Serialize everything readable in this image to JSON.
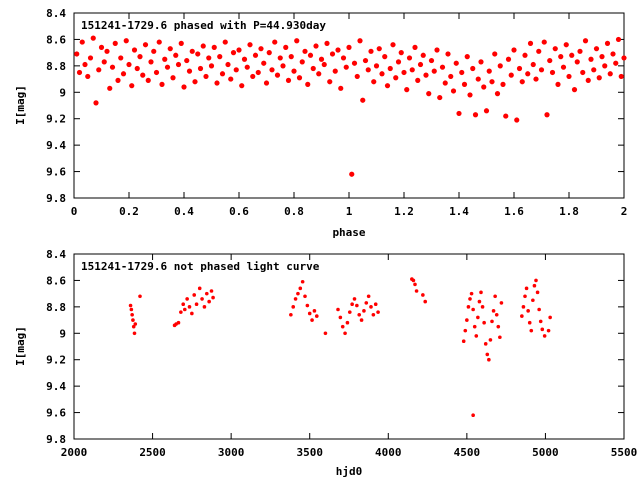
{
  "chart_data": [
    {
      "type": "scatter",
      "title": "151241-1729.6 phased with P=44.930day",
      "xlabel": "phase",
      "ylabel": "I[mag]",
      "xlim": [
        0,
        2
      ],
      "ylim": [
        8.4,
        9.8
      ],
      "y_inverted": true,
      "xticks": [
        "0",
        "0.2",
        "0.4",
        "0.6",
        "0.8",
        "1",
        "1.2",
        "1.4",
        "1.6",
        "1.8",
        "2"
      ],
      "yticks": [
        "8.4",
        "8.6",
        "8.8",
        "9",
        "9.2",
        "9.4",
        "9.6",
        "9.8"
      ],
      "marker_color": "#ff0000",
      "grid": false,
      "legend": "none",
      "points": [
        [
          0.01,
          8.71
        ],
        [
          0.02,
          8.85
        ],
        [
          0.03,
          8.62
        ],
        [
          0.04,
          8.79
        ],
        [
          0.05,
          8.88
        ],
        [
          0.06,
          8.74
        ],
        [
          0.07,
          8.59
        ],
        [
          0.08,
          9.08
        ],
        [
          0.09,
          8.83
        ],
        [
          0.1,
          8.66
        ],
        [
          0.11,
          8.77
        ],
        [
          0.12,
          8.69
        ],
        [
          0.13,
          8.97
        ],
        [
          0.14,
          8.81
        ],
        [
          0.15,
          8.63
        ],
        [
          0.16,
          8.91
        ],
        [
          0.17,
          8.74
        ],
        [
          0.18,
          8.86
        ],
        [
          0.19,
          8.61
        ],
        [
          0.2,
          8.79
        ],
        [
          0.21,
          8.95
        ],
        [
          0.22,
          8.68
        ],
        [
          0.23,
          8.82
        ],
        [
          0.24,
          8.73
        ],
        [
          0.25,
          8.87
        ],
        [
          0.26,
          8.64
        ],
        [
          0.27,
          8.91
        ],
        [
          0.28,
          8.77
        ],
        [
          0.29,
          8.69
        ],
        [
          0.3,
          8.85
        ],
        [
          0.31,
          8.62
        ],
        [
          0.32,
          8.94
        ],
        [
          0.33,
          8.75
        ],
        [
          0.34,
          8.81
        ],
        [
          0.35,
          8.67
        ],
        [
          0.36,
          8.89
        ],
        [
          0.37,
          8.72
        ],
        [
          0.38,
          8.79
        ],
        [
          0.39,
          8.63
        ],
        [
          0.4,
          8.96
        ],
        [
          0.41,
          8.76
        ],
        [
          0.42,
          8.84
        ],
        [
          0.43,
          8.69
        ],
        [
          0.44,
          8.92
        ],
        [
          0.45,
          8.71
        ],
        [
          0.46,
          8.82
        ],
        [
          0.47,
          8.65
        ],
        [
          0.48,
          8.88
        ],
        [
          0.49,
          8.74
        ],
        [
          0.5,
          8.8
        ],
        [
          0.51,
          8.66
        ],
        [
          0.52,
          8.93
        ],
        [
          0.53,
          8.73
        ],
        [
          0.54,
          8.86
        ],
        [
          0.55,
          8.62
        ],
        [
          0.56,
          8.79
        ],
        [
          0.57,
          8.9
        ],
        [
          0.58,
          8.7
        ],
        [
          0.59,
          8.83
        ],
        [
          0.6,
          8.68
        ],
        [
          0.61,
          8.95
        ],
        [
          0.62,
          8.75
        ],
        [
          0.63,
          8.81
        ],
        [
          0.64,
          8.64
        ],
        [
          0.65,
          8.88
        ],
        [
          0.66,
          8.72
        ],
        [
          0.67,
          8.85
        ],
        [
          0.68,
          8.67
        ],
        [
          0.69,
          8.78
        ],
        [
          0.7,
          8.93
        ],
        [
          0.71,
          8.7
        ],
        [
          0.72,
          8.83
        ],
        [
          0.73,
          8.62
        ],
        [
          0.74,
          8.87
        ],
        [
          0.75,
          8.74
        ],
        [
          0.76,
          8.8
        ],
        [
          0.77,
          8.66
        ],
        [
          0.78,
          8.91
        ],
        [
          0.79,
          8.73
        ],
        [
          0.8,
          8.84
        ],
        [
          0.81,
          8.61
        ],
        [
          0.82,
          8.89
        ],
        [
          0.83,
          8.77
        ],
        [
          0.84,
          8.69
        ],
        [
          0.85,
          8.94
        ],
        [
          0.86,
          8.72
        ],
        [
          0.87,
          8.82
        ],
        [
          0.88,
          8.65
        ],
        [
          0.89,
          8.86
        ],
        [
          0.9,
          8.75
        ],
        [
          0.91,
          8.79
        ],
        [
          0.92,
          8.63
        ],
        [
          0.93,
          8.92
        ],
        [
          0.94,
          8.71
        ],
        [
          0.95,
          8.84
        ],
        [
          0.96,
          8.68
        ],
        [
          0.97,
          8.97
        ],
        [
          0.98,
          8.74
        ],
        [
          0.99,
          8.81
        ],
        [
          1.0,
          8.66
        ],
        [
          1.01,
          9.62
        ],
        [
          1.02,
          8.78
        ],
        [
          1.03,
          8.88
        ],
        [
          1.04,
          8.61
        ],
        [
          1.05,
          9.06
        ],
        [
          1.06,
          8.76
        ],
        [
          1.07,
          8.83
        ],
        [
          1.08,
          8.69
        ],
        [
          1.09,
          8.92
        ],
        [
          1.1,
          8.8
        ],
        [
          1.11,
          8.67
        ],
        [
          1.12,
          8.86
        ],
        [
          1.13,
          8.73
        ],
        [
          1.14,
          8.95
        ],
        [
          1.15,
          8.82
        ],
        [
          1.16,
          8.64
        ],
        [
          1.17,
          8.89
        ],
        [
          1.18,
          8.77
        ],
        [
          1.19,
          8.7
        ],
        [
          1.2,
          8.85
        ],
        [
          1.21,
          8.98
        ],
        [
          1.22,
          8.74
        ],
        [
          1.23,
          8.83
        ],
        [
          1.24,
          8.66
        ],
        [
          1.25,
          8.91
        ],
        [
          1.26,
          8.79
        ],
        [
          1.27,
          8.72
        ],
        [
          1.28,
          8.87
        ],
        [
          1.29,
          9.01
        ],
        [
          1.3,
          8.76
        ],
        [
          1.31,
          8.84
        ],
        [
          1.32,
          8.68
        ],
        [
          1.33,
          9.04
        ],
        [
          1.34,
          8.81
        ],
        [
          1.35,
          8.93
        ],
        [
          1.36,
          8.71
        ],
        [
          1.37,
          8.88
        ],
        [
          1.38,
          8.99
        ],
        [
          1.39,
          8.78
        ],
        [
          1.4,
          9.16
        ],
        [
          1.41,
          8.85
        ],
        [
          1.42,
          8.94
        ],
        [
          1.43,
          8.73
        ],
        [
          1.44,
          9.02
        ],
        [
          1.45,
          8.82
        ],
        [
          1.46,
          9.17
        ],
        [
          1.47,
          8.9
        ],
        [
          1.48,
          8.77
        ],
        [
          1.49,
          8.96
        ],
        [
          1.5,
          9.14
        ],
        [
          1.51,
          8.84
        ],
        [
          1.52,
          8.92
        ],
        [
          1.53,
          8.71
        ],
        [
          1.54,
          9.01
        ],
        [
          1.55,
          8.8
        ],
        [
          1.56,
          8.94
        ],
        [
          1.57,
          9.18
        ],
        [
          1.58,
          8.75
        ],
        [
          1.59,
          8.87
        ],
        [
          1.6,
          8.68
        ],
        [
          1.61,
          9.21
        ],
        [
          1.62,
          8.82
        ],
        [
          1.63,
          8.92
        ],
        [
          1.64,
          8.72
        ],
        [
          1.65,
          8.86
        ],
        [
          1.66,
          8.63
        ],
        [
          1.67,
          8.79
        ],
        [
          1.68,
          8.9
        ],
        [
          1.69,
          8.69
        ],
        [
          1.7,
          8.83
        ],
        [
          1.71,
          8.62
        ],
        [
          1.72,
          9.17
        ],
        [
          1.73,
          8.76
        ],
        [
          1.74,
          8.85
        ],
        [
          1.75,
          8.67
        ],
        [
          1.76,
          8.94
        ],
        [
          1.77,
          8.73
        ],
        [
          1.78,
          8.81
        ],
        [
          1.79,
          8.64
        ],
        [
          1.8,
          8.88
        ],
        [
          1.81,
          8.72
        ],
        [
          1.82,
          8.98
        ],
        [
          1.83,
          8.77
        ],
        [
          1.84,
          8.69
        ],
        [
          1.85,
          8.85
        ],
        [
          1.86,
          8.61
        ],
        [
          1.87,
          8.91
        ],
        [
          1.88,
          8.75
        ],
        [
          1.89,
          8.83
        ],
        [
          1.9,
          8.67
        ],
        [
          1.91,
          8.89
        ],
        [
          1.92,
          8.73
        ],
        [
          1.93,
          8.8
        ],
        [
          1.94,
          8.63
        ],
        [
          1.95,
          8.86
        ],
        [
          1.96,
          8.71
        ],
        [
          1.97,
          8.78
        ],
        [
          1.98,
          8.6
        ],
        [
          1.99,
          8.88
        ],
        [
          2.0,
          8.74
        ]
      ]
    },
    {
      "type": "scatter",
      "title": "151241-1729.6 not phased light curve",
      "xlabel": "hjd0",
      "ylabel": "I[mag]",
      "xlim": [
        2000,
        5500
      ],
      "ylim": [
        8.4,
        9.8
      ],
      "y_inverted": true,
      "xticks": [
        "2000",
        "2500",
        "3000",
        "3500",
        "4000",
        "4500",
        "5000",
        "5500"
      ],
      "yticks": [
        "8.4",
        "8.6",
        "8.8",
        "9",
        "9.2",
        "9.4",
        "9.6",
        "9.8"
      ],
      "marker_color": "#ff0000",
      "grid": false,
      "legend": "none",
      "points": [
        [
          2360,
          8.79
        ],
        [
          2365,
          8.82
        ],
        [
          2370,
          8.86
        ],
        [
          2375,
          8.9
        ],
        [
          2380,
          8.95
        ],
        [
          2385,
          9.0
        ],
        [
          2390,
          8.93
        ],
        [
          2420,
          8.72
        ],
        [
          2640,
          8.94
        ],
        [
          2650,
          8.93
        ],
        [
          2665,
          8.92
        ],
        [
          2680,
          8.84
        ],
        [
          2695,
          8.78
        ],
        [
          2705,
          8.82
        ],
        [
          2720,
          8.74
        ],
        [
          2735,
          8.8
        ],
        [
          2750,
          8.85
        ],
        [
          2765,
          8.71
        ],
        [
          2780,
          8.78
        ],
        [
          2800,
          8.66
        ],
        [
          2815,
          8.74
        ],
        [
          2830,
          8.8
        ],
        [
          2845,
          8.7
        ],
        [
          2860,
          8.76
        ],
        [
          2875,
          8.68
        ],
        [
          2885,
          8.73
        ],
        [
          3380,
          8.86
        ],
        [
          3395,
          8.8
        ],
        [
          3410,
          8.74
        ],
        [
          3425,
          8.7
        ],
        [
          3440,
          8.66
        ],
        [
          3455,
          8.61
        ],
        [
          3470,
          8.72
        ],
        [
          3485,
          8.79
        ],
        [
          3500,
          8.85
        ],
        [
          3515,
          8.9
        ],
        [
          3530,
          8.83
        ],
        [
          3545,
          8.87
        ],
        [
          3600,
          9.0
        ],
        [
          3680,
          8.82
        ],
        [
          3695,
          8.88
        ],
        [
          3710,
          8.95
        ],
        [
          3725,
          9.0
        ],
        [
          3740,
          8.92
        ],
        [
          3755,
          8.84
        ],
        [
          3770,
          8.78
        ],
        [
          3785,
          8.74
        ],
        [
          3800,
          8.79
        ],
        [
          3815,
          8.86
        ],
        [
          3830,
          8.9
        ],
        [
          3845,
          8.83
        ],
        [
          3860,
          8.77
        ],
        [
          3875,
          8.72
        ],
        [
          3890,
          8.8
        ],
        [
          3905,
          8.86
        ],
        [
          3920,
          8.78
        ],
        [
          3935,
          8.84
        ],
        [
          4150,
          8.59
        ],
        [
          4160,
          8.6
        ],
        [
          4170,
          8.63
        ],
        [
          4180,
          8.68
        ],
        [
          4220,
          8.71
        ],
        [
          4235,
          8.76
        ],
        [
          4480,
          9.06
        ],
        [
          4490,
          8.98
        ],
        [
          4500,
          8.9
        ],
        [
          4510,
          8.8
        ],
        [
          4520,
          8.74
        ],
        [
          4530,
          8.7
        ],
        [
          4540,
          8.82
        ],
        [
          4550,
          8.95
        ],
        [
          4560,
          9.02
        ],
        [
          4570,
          8.88
        ],
        [
          4580,
          8.76
        ],
        [
          4590,
          8.69
        ],
        [
          4600,
          8.8
        ],
        [
          4610,
          8.92
        ],
        [
          4620,
          9.08
        ],
        [
          4630,
          9.16
        ],
        [
          4640,
          9.2
        ],
        [
          4650,
          9.05
        ],
        [
          4660,
          8.91
        ],
        [
          4670,
          8.83
        ],
        [
          4680,
          8.72
        ],
        [
          4690,
          8.86
        ],
        [
          4700,
          8.95
        ],
        [
          4710,
          9.03
        ],
        [
          4720,
          8.77
        ],
        [
          4540,
          9.62
        ],
        [
          4850,
          8.87
        ],
        [
          4860,
          8.8
        ],
        [
          4870,
          8.72
        ],
        [
          4880,
          8.66
        ],
        [
          4890,
          8.83
        ],
        [
          4900,
          8.92
        ],
        [
          4910,
          8.98
        ],
        [
          4920,
          8.75
        ],
        [
          4930,
          8.64
        ],
        [
          4940,
          8.6
        ],
        [
          4950,
          8.69
        ],
        [
          4960,
          8.82
        ],
        [
          4970,
          8.91
        ],
        [
          4980,
          8.97
        ],
        [
          4995,
          9.02
        ],
        [
          5020,
          8.98
        ],
        [
          5030,
          8.88
        ]
      ]
    }
  ]
}
